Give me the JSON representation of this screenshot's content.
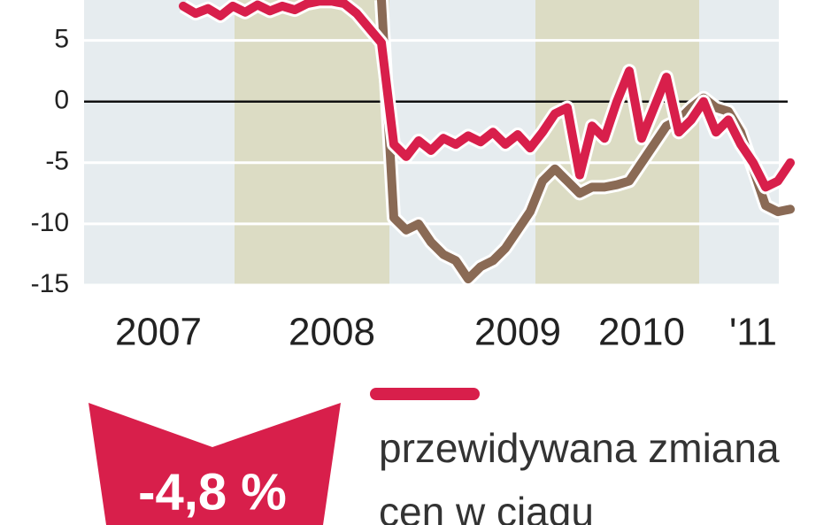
{
  "chart_data": {
    "type": "line",
    "categories": [
      null,
      null,
      null,
      null,
      null,
      null,
      "2007",
      null,
      null,
      null,
      null,
      null,
      null,
      null,
      null,
      null,
      null,
      null,
      null,
      null,
      "2008",
      null,
      null,
      null,
      null,
      null,
      null,
      null,
      null,
      null,
      null,
      null,
      null,
      null,
      null,
      "2009",
      null,
      null,
      null,
      null,
      null,
      null,
      null,
      null,
      null,
      "2010",
      null,
      null,
      null,
      null,
      null,
      null,
      null,
      null,
      "'11",
      null,
      null,
      null
    ],
    "series": [
      {
        "name": "przewidywana zmiana cen w ciągu",
        "color": "#d81f4b",
        "values": [
          null,
          null,
          null,
          null,
          null,
          null,
          null,
          null,
          7.8,
          7.2,
          7.6,
          7.0,
          7.8,
          7.3,
          7.9,
          7.4,
          7.8,
          7.5,
          8.0,
          8.2,
          8.2,
          8.0,
          7.2,
          6.0,
          4.8,
          -3.5,
          -4.5,
          -3.2,
          -4,
          -3,
          -3.5,
          -2.8,
          -3.3,
          -2.5,
          -3.5,
          -2.7,
          -3.8,
          -2.5,
          -1,
          -0.5,
          -6,
          -2,
          -3,
          0,
          2.5,
          -3,
          -0.5,
          2,
          -2.5,
          -1.5,
          0,
          -2.5,
          -1.5,
          -3.5,
          -5,
          -7,
          -6.5,
          -5
        ]
      },
      {
        "color": "#8a6a55",
        "values": [
          null,
          null,
          null,
          null,
          null,
          null,
          null,
          null,
          null,
          null,
          null,
          null,
          null,
          null,
          null,
          null,
          null,
          null,
          null,
          null,
          null,
          null,
          null,
          null,
          8.3,
          -9.5,
          -10.5,
          -10,
          -11.5,
          -12.5,
          -13,
          -14.5,
          -13.5,
          -13,
          -12,
          -10.5,
          -9,
          -6.5,
          -5.5,
          -6.5,
          -7.5,
          -7,
          -7,
          -6.8,
          -6.5,
          -5,
          -3.5,
          -2,
          -1.5,
          -0.5,
          0.3,
          -0.5,
          -0.8,
          -2.5,
          -5.5,
          -8.5,
          -9,
          -8.8
        ]
      }
    ],
    "ylim": [
      -15,
      8.3
    ],
    "yticks": [
      5,
      0,
      -5,
      -10,
      -15
    ],
    "annotation": "-4,8 %"
  }
}
